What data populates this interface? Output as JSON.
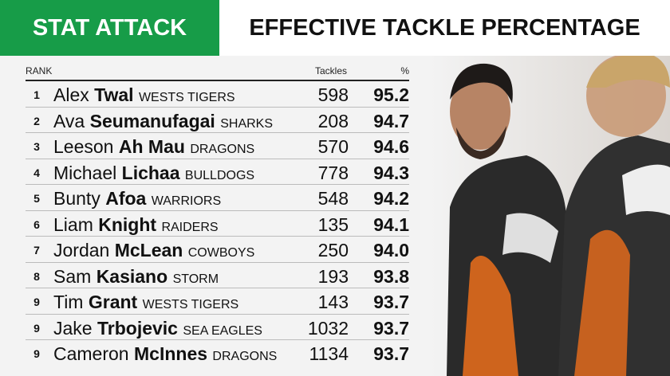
{
  "header": {
    "badge": "STAT ATTACK",
    "title": "EFFECTIVE TACKLE PERCENTAGE"
  },
  "table": {
    "columns": [
      "RANK",
      "Tackles",
      "%"
    ],
    "rows": [
      {
        "rank": "1",
        "first": "Alex",
        "last": "Twal",
        "team": "WESTS TIGERS",
        "tackles": "598",
        "pct": "95.2"
      },
      {
        "rank": "2",
        "first": "Ava",
        "last": "Seumanufagai",
        "team": "SHARKS",
        "tackles": "208",
        "pct": "94.7"
      },
      {
        "rank": "3",
        "first": "Leeson",
        "last": "Ah Mau",
        "team": "DRAGONS",
        "tackles": "570",
        "pct": "94.6"
      },
      {
        "rank": "4",
        "first": "Michael",
        "last": "Lichaa",
        "team": "BULLDOGS",
        "tackles": "778",
        "pct": "94.3"
      },
      {
        "rank": "5",
        "first": "Bunty",
        "last": "Afoa",
        "team": "WARRIORS",
        "tackles": "548",
        "pct": "94.2"
      },
      {
        "rank": "6",
        "first": "Liam",
        "last": "Knight",
        "team": "RAIDERS",
        "tackles": "135",
        "pct": "94.1"
      },
      {
        "rank": "7",
        "first": "Jordan",
        "last": "McLean",
        "team": "COWBOYS",
        "tackles": "250",
        "pct": "94.0"
      },
      {
        "rank": "8",
        "first": "Sam",
        "last": "Kasiano",
        "team": "STORM",
        "tackles": "193",
        "pct": "93.8"
      },
      {
        "rank": "9",
        "first": "Tim",
        "last": "Grant",
        "team": "WESTS TIGERS",
        "tackles": "143",
        "pct": "93.7"
      },
      {
        "rank": "9",
        "first": "Jake",
        "last": "Trbojevic",
        "team": "SEA EAGLES",
        "tackles": "1032",
        "pct": "93.7"
      },
      {
        "rank": "9",
        "first": "Cameron",
        "last": "McInnes",
        "team": "DRAGONS",
        "tackles": "1134",
        "pct": "93.7"
      }
    ]
  }
}
